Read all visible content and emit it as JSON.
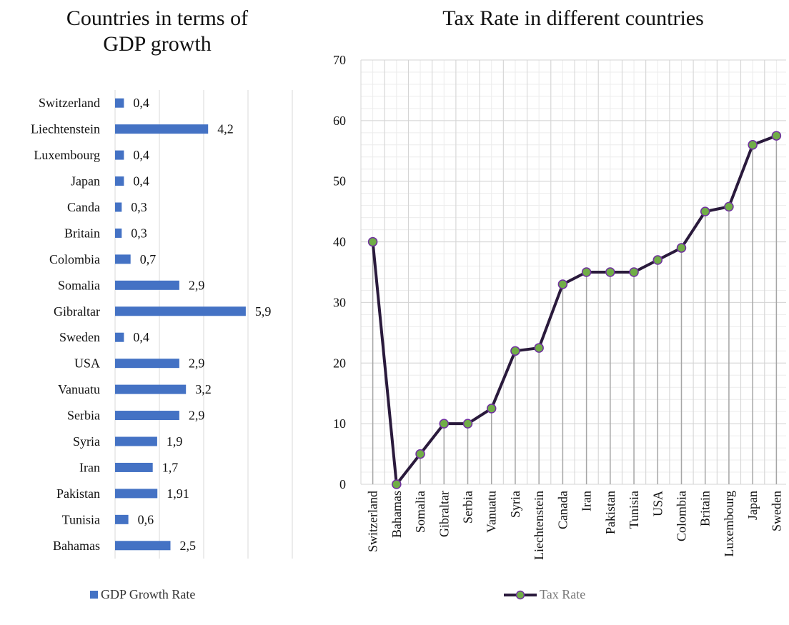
{
  "chart_data": [
    {
      "type": "bar",
      "orientation": "horizontal",
      "title": "Countries in terms of GDP growth",
      "title_lines": [
        "Countries in terms of",
        "GDP growth"
      ],
      "categories": [
        "Switzerland",
        "Liechtenstein",
        "Luxembourg",
        "Japan",
        "Canda",
        "Britain",
        "Colombia",
        "Somalia",
        "Gibraltar",
        "Sweden",
        "USA",
        "Vanuatu",
        "Serbia",
        "Syria",
        "Iran",
        "Pakistan",
        "Tunisia",
        "Bahamas"
      ],
      "series": [
        {
          "name": "GDP Growth Rate",
          "values": [
            0.4,
            4.2,
            0.4,
            0.4,
            0.3,
            0.3,
            0.7,
            2.9,
            5.9,
            0.4,
            2.9,
            3.2,
            2.9,
            1.9,
            1.7,
            1.91,
            0.6,
            2.5
          ],
          "labels": [
            "0,4",
            "4,2",
            "0,4",
            "0,4",
            "0,3",
            "0,3",
            "0,7",
            "2,9",
            "5,9",
            "0,4",
            "2,9",
            "3,2",
            "2,9",
            "1,9",
            "1,7",
            "1,91",
            "0,6",
            "2,5"
          ],
          "color": "#4472c4"
        }
      ],
      "xlim": [
        0,
        8
      ],
      "xticks": [
        "0",
        "2",
        "4",
        "6",
        "8"
      ],
      "xlabel": "",
      "ylabel": "",
      "grid": "vertical major",
      "legend": "bottom"
    },
    {
      "type": "line",
      "title": "Tax Rate in different countries",
      "categories": [
        "Switzerland",
        "Bahamas",
        "Somalia",
        "Gibraltar",
        "Serbia",
        "Vanuatu",
        "Syria",
        "Liechtenstein",
        "Canada",
        "Iran",
        "Pakistan",
        "Tunisia",
        "USA",
        "Colombia",
        "Britain",
        "Luxembourg",
        "Japan",
        "Sweden"
      ],
      "series": [
        {
          "name": "Tax Rate",
          "values": [
            40,
            0,
            5,
            10,
            10,
            12.5,
            22,
            22.5,
            33,
            35,
            35,
            35,
            37,
            39,
            45,
            45.8,
            56,
            57.5
          ],
          "line_color": "#2a1a3c",
          "marker_fill": "#70ad47",
          "marker_edge": "#7030a0"
        }
      ],
      "ylim": [
        0,
        70
      ],
      "yticks": [
        "0",
        "10",
        "20",
        "30",
        "40",
        "50",
        "60",
        "70"
      ],
      "xlabel": "",
      "ylabel": "",
      "grid": "major and minor",
      "drop_lines": true,
      "legend": "bottom"
    }
  ]
}
